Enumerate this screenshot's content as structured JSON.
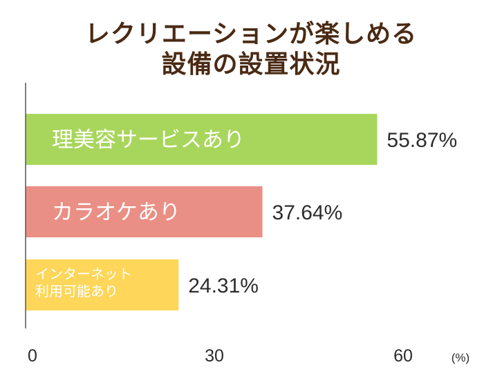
{
  "chart_data": {
    "type": "bar",
    "orientation": "horizontal",
    "title": "レクリエーションが楽しめる設備の設置状況",
    "title_lines": [
      "レクリエーションが楽しめる",
      "設備の設置状況"
    ],
    "categories": [
      "理美容サービスあり",
      "カラオケあり",
      "インターネット利用可能あり"
    ],
    "category_lines": [
      [
        "理美容サービスあり"
      ],
      [
        "カラオケあり"
      ],
      [
        "インターネット",
        "利用可能あり"
      ]
    ],
    "values": [
      55.87,
      37.64,
      24.31
    ],
    "value_labels": [
      "55.87%",
      "37.64%",
      "24.31%"
    ],
    "colors": [
      "#a8d65c",
      "#ea8f85",
      "#fdd65a"
    ],
    "xlim": [
      0,
      60
    ],
    "xticks": [
      0,
      30,
      60
    ],
    "xtick_labels": [
      "0",
      "30",
      "60"
    ],
    "unit_label": "(%)",
    "grid": false
  }
}
